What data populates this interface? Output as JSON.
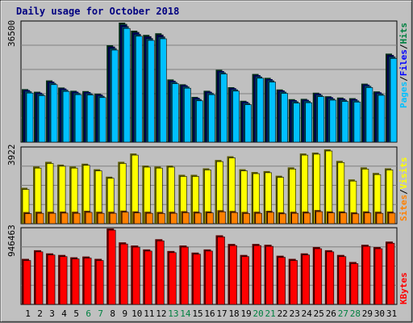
{
  "title": "Daily usage for October 2018",
  "colors": {
    "title": "#000080",
    "frame": "#c0c0c0",
    "plot_bg": "#c0c0c0",
    "grid": "#808080",
    "hits": "#008040",
    "files": "#0000ff",
    "pages": "#00c0ff",
    "visits": "#ffff00",
    "sites": "#ff8000",
    "kbytes": "#ff0000",
    "weekend_label": "#008040",
    "weekday_label": "#000000"
  },
  "chart_data": [
    {
      "type": "bar",
      "panel": "top",
      "y_max_label": "36500",
      "ylim": [
        0,
        36500
      ],
      "side_labels": [
        "Pages",
        "Files",
        "Hits"
      ],
      "grid": true,
      "categories": [
        "1",
        "2",
        "3",
        "4",
        "5",
        "6",
        "7",
        "8",
        "9",
        "10",
        "11",
        "12",
        "13",
        "14",
        "15",
        "16",
        "17",
        "18",
        "19",
        "20",
        "21",
        "22",
        "23",
        "24",
        "25",
        "26",
        "27",
        "28",
        "29",
        "30",
        "31"
      ],
      "weekend_days": [
        "6",
        "7",
        "13",
        "14",
        "20",
        "21",
        "27",
        "28"
      ],
      "series": [
        {
          "name": "Hits",
          "values": [
            15900,
            15100,
            18600,
            16400,
            15400,
            15300,
            14500,
            29500,
            36500,
            34000,
            32700,
            33200,
            18900,
            17400,
            13500,
            15400,
            21900,
            16500,
            12300,
            20600,
            19400,
            15800,
            12800,
            12900,
            14800,
            13700,
            13300,
            13100,
            17600,
            15200,
            26900
          ]
        },
        {
          "name": "Files",
          "values": [
            15600,
            14800,
            18200,
            16100,
            15100,
            15000,
            14200,
            29000,
            35800,
            33400,
            32100,
            32600,
            18500,
            17100,
            13200,
            15100,
            21500,
            16200,
            12000,
            20200,
            19000,
            15500,
            12500,
            12600,
            14500,
            13400,
            13000,
            12800,
            17300,
            14900,
            26400
          ]
        },
        {
          "name": "Pages",
          "values": [
            15200,
            14400,
            17800,
            15700,
            14700,
            14600,
            13800,
            28500,
            35200,
            32800,
            31500,
            32000,
            18100,
            16700,
            12800,
            14700,
            21100,
            15800,
            11600,
            19800,
            18600,
            15100,
            12100,
            12200,
            14100,
            13000,
            12600,
            12400,
            16900,
            14500,
            25900
          ]
        }
      ]
    },
    {
      "type": "bar",
      "panel": "middle",
      "y_max_label": "3922",
      "ylim": [
        0,
        3922
      ],
      "side_labels": [
        "Sites",
        "Visits"
      ],
      "grid": true,
      "categories": [
        "1",
        "2",
        "3",
        "4",
        "5",
        "6",
        "7",
        "8",
        "9",
        "10",
        "11",
        "12",
        "13",
        "14",
        "15",
        "16",
        "17",
        "18",
        "19",
        "20",
        "21",
        "22",
        "23",
        "24",
        "25",
        "26",
        "27",
        "28",
        "29",
        "30",
        "31"
      ],
      "series": [
        {
          "name": "Visits",
          "values": [
            1850,
            3000,
            3250,
            3100,
            3000,
            3150,
            2850,
            2450,
            3250,
            3700,
            3050,
            3000,
            3050,
            2550,
            2550,
            2900,
            3350,
            3550,
            2850,
            2700,
            2750,
            2500,
            2950,
            3700,
            3750,
            3922,
            3300,
            2300,
            2950,
            2650,
            2900
          ]
        },
        {
          "name": "Sites",
          "values": [
            540,
            560,
            560,
            570,
            560,
            610,
            560,
            560,
            620,
            580,
            560,
            550,
            560,
            590,
            570,
            580,
            640,
            600,
            550,
            560,
            610,
            530,
            560,
            570,
            650,
            580,
            580,
            530,
            580,
            560,
            570
          ]
        }
      ]
    },
    {
      "type": "bar",
      "panel": "bottom",
      "y_max_label": "946463",
      "ylim": [
        0,
        946463
      ],
      "side_labels": [
        "KBytes"
      ],
      "grid": true,
      "categories": [
        "1",
        "2",
        "3",
        "4",
        "5",
        "6",
        "7",
        "8",
        "9",
        "10",
        "11",
        "12",
        "13",
        "14",
        "15",
        "16",
        "17",
        "18",
        "19",
        "20",
        "21",
        "22",
        "23",
        "24",
        "25",
        "26",
        "27",
        "28",
        "29",
        "30",
        "31"
      ],
      "series": [
        {
          "name": "KBytes",
          "values": [
            560000,
            670000,
            630000,
            610000,
            580000,
            590000,
            560000,
            946463,
            770000,
            730000,
            680000,
            810000,
            660000,
            730000,
            640000,
            680000,
            860000,
            750000,
            610000,
            750000,
            740000,
            600000,
            560000,
            630000,
            710000,
            670000,
            610000,
            520000,
            740000,
            710000,
            780000
          ]
        }
      ]
    }
  ]
}
